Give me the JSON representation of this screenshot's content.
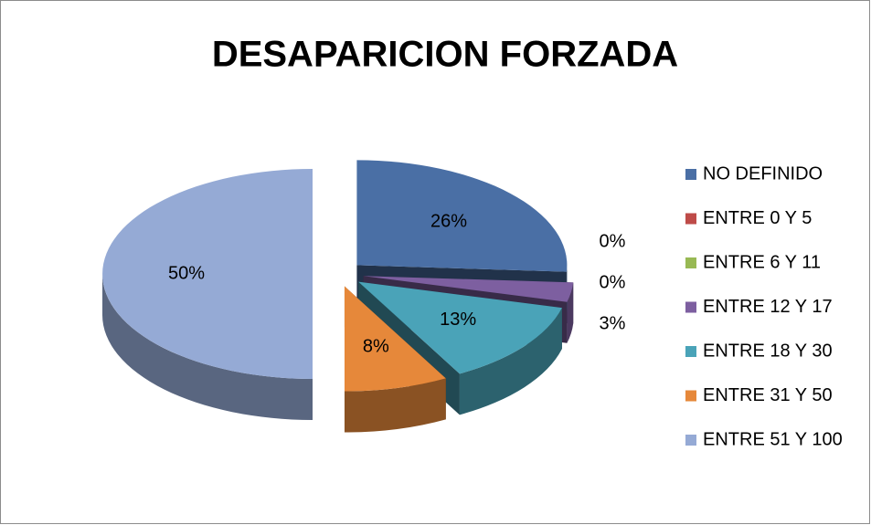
{
  "chart_data": {
    "type": "pie3d",
    "title": "DESAPARICION FORZADA",
    "categories": [
      "NO DEFINIDO",
      "ENTRE 0 Y 5",
      "ENTRE 6 Y 11",
      "ENTRE 12 Y 17",
      "ENTRE 18 Y 30",
      "ENTRE 31 Y 50",
      "ENTRE 51 Y 100"
    ],
    "values": [
      26,
      0,
      0,
      3,
      13,
      8,
      50
    ],
    "value_labels": [
      "26%",
      "0%",
      "0%",
      "3%",
      "13%",
      "8%",
      "50%"
    ],
    "colors": [
      "#4a6fa5",
      "#be4b48",
      "#98b954",
      "#7d5fa0",
      "#4aa3b8",
      "#e6883a",
      "#95aad5"
    ],
    "legend": "right"
  }
}
